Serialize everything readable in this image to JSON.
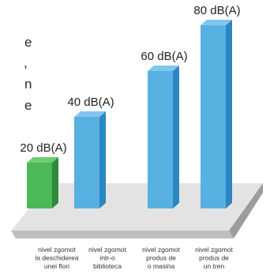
{
  "chart_data": {
    "type": "bar",
    "title": "",
    "xlabel": "",
    "ylabel": "",
    "categories": [
      [
        "nivel zgomot",
        "la deschiderea",
        "unei flori"
      ],
      [
        "nivel zgomot",
        "intr-o",
        "biblioteca"
      ],
      [
        "nivel zgomot",
        "produs de",
        "o masina"
      ],
      [
        "nivel zgomot",
        "produs de",
        "un tren"
      ]
    ],
    "values": [
      20,
      40,
      60,
      80
    ],
    "value_labels": [
      "20 dB(A)",
      "40 dB(A)",
      "60 dB(A)",
      "80 dB(A)"
    ],
    "unit": "dB(A)",
    "ylim": [
      0,
      80
    ],
    "grid": false,
    "colors": [
      "#4cb857",
      "#58b0e1",
      "#58b0e1",
      "#58b0e1"
    ],
    "side_colors": [
      "#2f8a3a",
      "#2b86c2",
      "#2b86c2",
      "#2b86c2"
    ],
    "top_colors": [
      "#6ccd75",
      "#80c6ef",
      "#80c6ef",
      "#80c6ef"
    ]
  },
  "edge_text": [
    "e",
    ",",
    "n",
    "e"
  ]
}
